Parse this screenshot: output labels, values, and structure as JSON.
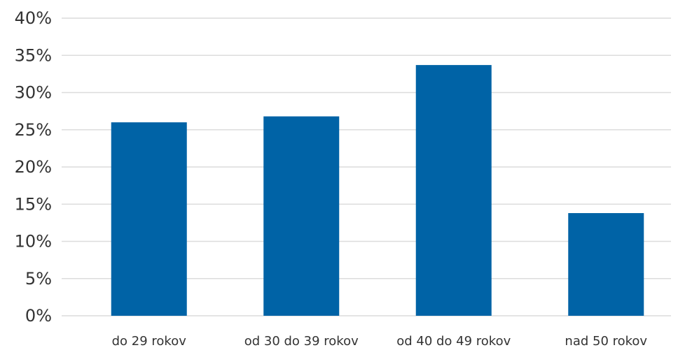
{
  "chart_data": {
    "type": "bar",
    "categories": [
      "do 29 rokov",
      "od 30 do 39 rokov",
      "od 40 do 49 rokov",
      "nad 50 rokov"
    ],
    "values": [
      26,
      26.8,
      33.7,
      13.8
    ],
    "title": "",
    "xlabel": "",
    "ylabel": "",
    "ylim": [
      0,
      40
    ],
    "yticks": [
      "0%",
      "5%",
      "10%",
      "15%",
      "20%",
      "25%",
      "30%",
      "35%",
      "40%"
    ],
    "grid": true,
    "legend": "none",
    "bar_color": "#0063a6"
  }
}
